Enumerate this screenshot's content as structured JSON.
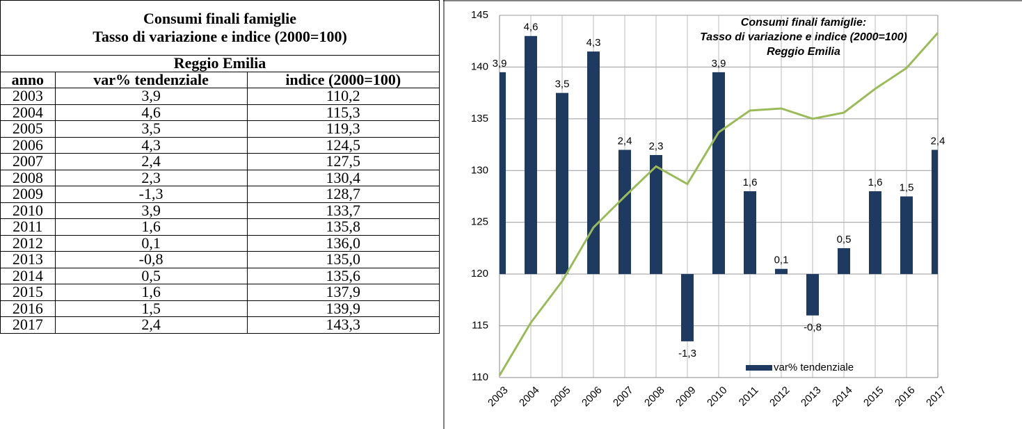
{
  "table": {
    "title": [
      "Consumi finali famiglie",
      "Tasso di variazione e indice (2000=100)"
    ],
    "subtitle": "Reggio Emilia",
    "columns": [
      "anno",
      "var% tendenziale",
      "indice (2000=100)"
    ],
    "rows": [
      [
        "2003",
        "3,9",
        "110,2"
      ],
      [
        "2004",
        "4,6",
        "115,3"
      ],
      [
        "2005",
        "3,5",
        "119,3"
      ],
      [
        "2006",
        "4,3",
        "124,5"
      ],
      [
        "2007",
        "2,4",
        "127,5"
      ],
      [
        "2008",
        "2,3",
        "130,4"
      ],
      [
        "2009",
        "-1,3",
        "128,7"
      ],
      [
        "2010",
        "3,9",
        "133,7"
      ],
      [
        "2011",
        "1,6",
        "135,8"
      ],
      [
        "2012",
        "0,1",
        "136,0"
      ],
      [
        "2013",
        "-0,8",
        "135,0"
      ],
      [
        "2014",
        "0,5",
        "135,6"
      ],
      [
        "2015",
        "1,6",
        "137,9"
      ],
      [
        "2016",
        "1,5",
        "139,9"
      ],
      [
        "2017",
        "2,4",
        "143,3"
      ]
    ]
  },
  "chart_data": {
    "type": "combo",
    "title": [
      "Consumi finali famiglie:",
      "Tasso di variazione e indice (2000=100)",
      "Reggio Emilia"
    ],
    "categories": [
      "2003",
      "2004",
      "2005",
      "2006",
      "2007",
      "2008",
      "2009",
      "2010",
      "2011",
      "2012",
      "2013",
      "2014",
      "2015",
      "2016",
      "2017"
    ],
    "series": [
      {
        "name": "var% tendenziale",
        "type": "bar",
        "axis": "y2",
        "color": "#1f3a60",
        "values": [
          3.9,
          4.6,
          3.5,
          4.3,
          2.4,
          2.3,
          -1.3,
          3.9,
          1.6,
          0.1,
          -0.8,
          0.5,
          1.6,
          1.5,
          2.4
        ],
        "value_labels": [
          "3,9",
          "4,6",
          "3,5",
          "4,3",
          "2,4",
          "2,3",
          "-1,3",
          "3,9",
          "1,6",
          "0,1",
          "-0,8",
          "0,5",
          "1,6",
          "1,5",
          "2,4"
        ]
      },
      {
        "type": "line",
        "color": "#9bbb59",
        "values": [
          110.2,
          115.3,
          119.3,
          124.5,
          127.5,
          130.4,
          128.7,
          133.7,
          135.8,
          136.0,
          135.0,
          135.6,
          137.9,
          139.9,
          143.3
        ]
      }
    ],
    "ylim": [
      110,
      145
    ],
    "yticks": [
      110,
      115,
      120,
      125,
      130,
      135,
      140,
      145
    ],
    "y2lim": [
      -2,
      5
    ],
    "grid": true,
    "legend": "lower right"
  }
}
